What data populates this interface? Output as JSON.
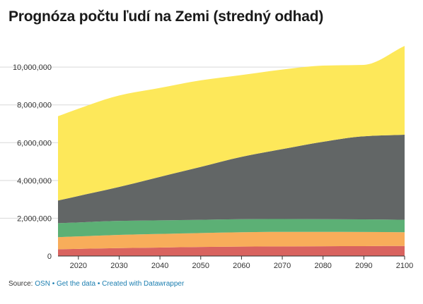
{
  "title": "Prognóza počtu ľudí na Zemi (stredný odhad)",
  "footer": {
    "source_label": "Source:",
    "source_link": "OSN",
    "separator": "•",
    "get_data": "Get the data",
    "created_with": "Created with Datawrapper"
  },
  "chart_data": {
    "type": "area",
    "stacked": true,
    "title": "Prognóza počtu ľudí na Zemi (stredný odhad)",
    "xlabel": "",
    "ylabel": "",
    "x": [
      2015,
      2020,
      2030,
      2040,
      2050,
      2060,
      2070,
      2080,
      2090,
      2100
    ],
    "xticks": [
      2020,
      2030,
      2040,
      2050,
      2060,
      2070,
      2080,
      2090,
      2100
    ],
    "ylim": [
      0,
      11500000
    ],
    "yticks": [
      0,
      2000000,
      4000000,
      6000000,
      8000000,
      10000000
    ],
    "ytick_labels": [
      "0",
      "2,000,000",
      "4,000,000",
      "6,000,000",
      "8,000,000",
      "10,000,000"
    ],
    "grid": true,
    "series": [
      {
        "color": "#d9635f",
        "values": [
          360000,
          380000,
          420000,
          450000,
          480000,
          500000,
          510000,
          520000,
          525000,
          530000
        ]
      },
      {
        "color": "#f8ad5a",
        "values": [
          640000,
          660000,
          700000,
          720000,
          740000,
          760000,
          770000,
          760000,
          750000,
          730000
        ]
      },
      {
        "color": "#5cb075",
        "values": [
          740000,
          740000,
          740000,
          720000,
          700000,
          690000,
          680000,
          670000,
          665000,
          660000
        ]
      },
      {
        "color": "#626666",
        "values": [
          1200000,
          1400000,
          1800000,
          2300000,
          2800000,
          3300000,
          3700000,
          4100000,
          4400000,
          4500000
        ]
      },
      {
        "color": "#fde85a",
        "values": [
          4460000,
          4620000,
          4840000,
          4710000,
          4580000,
          4330000,
          4210000,
          4030000,
          3780000,
          4700000
        ]
      }
    ]
  }
}
